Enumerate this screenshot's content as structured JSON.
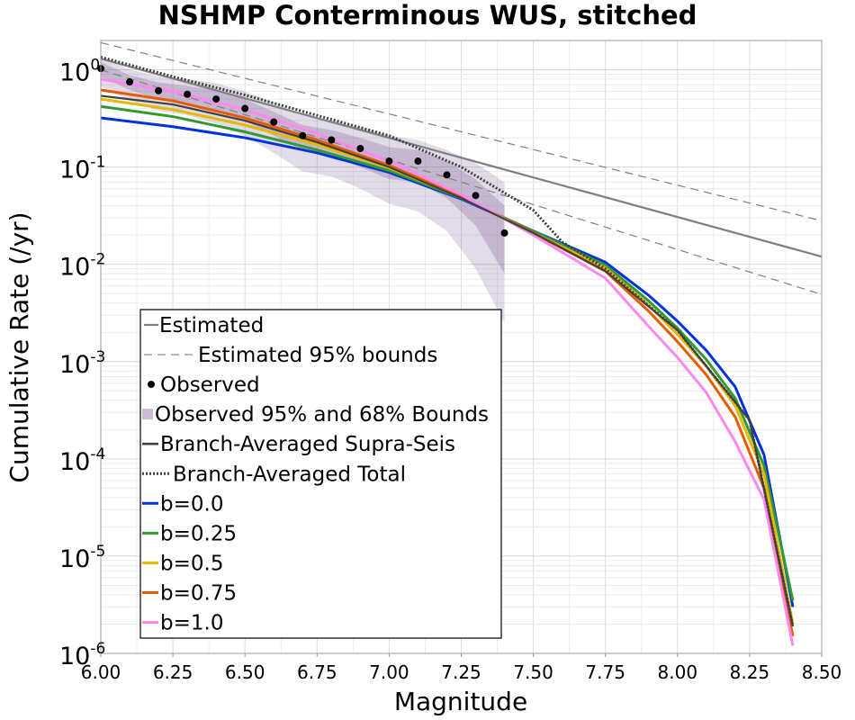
{
  "chart_data": {
    "type": "line",
    "title": "NSHMP Conterminous WUS, stitched",
    "xlabel": "Magnitude",
    "ylabel": "Cumulative Rate (/yr)",
    "xlim": [
      6.0,
      8.5
    ],
    "ylim": [
      1e-06,
      2
    ],
    "yscale": "log",
    "grid": true,
    "legend_placement": "lower-left",
    "x_ticks": [
      "6.00",
      "6.25",
      "6.50",
      "6.75",
      "7.00",
      "7.25",
      "7.50",
      "7.75",
      "8.00",
      "8.25",
      "8.50"
    ],
    "y_ticks": [
      {
        "base": "10",
        "exp": "0",
        "value": 1
      },
      {
        "base": "10",
        "exp": "-1",
        "value": 0.1
      },
      {
        "base": "10",
        "exp": "-2",
        "value": 0.01
      },
      {
        "base": "10",
        "exp": "-3",
        "value": 0.001
      },
      {
        "base": "10",
        "exp": "-4",
        "value": 0.0001
      },
      {
        "base": "10",
        "exp": "-5",
        "value": 1e-05
      },
      {
        "base": "10",
        "exp": "-6",
        "value": 1e-06
      }
    ],
    "estimated": {
      "name": "Estimated",
      "color": "#808080",
      "x": [
        6.0,
        8.5
      ],
      "y": [
        1.3,
        0.012
      ]
    },
    "estimated_bounds": {
      "name": "Estimated 95% bounds",
      "color": "#808080",
      "upper": {
        "x": [
          6.0,
          8.5
        ],
        "y": [
          1.9,
          0.028
        ]
      },
      "lower": {
        "x": [
          6.0,
          8.5
        ],
        "y": [
          1.0,
          0.0049
        ]
      }
    },
    "observed": {
      "name": "Observed",
      "color": "#000000",
      "x": [
        6.0,
        6.1,
        6.2,
        6.3,
        6.4,
        6.5,
        6.6,
        6.7,
        6.8,
        6.9,
        7.0,
        7.1,
        7.2,
        7.3,
        7.4
      ],
      "y": [
        1.03,
        0.75,
        0.61,
        0.56,
        0.5,
        0.4,
        0.29,
        0.21,
        0.19,
        0.155,
        0.115,
        0.115,
        0.083,
        0.051,
        0.021
      ]
    },
    "observed_bounds": {
      "name": "Observed 95% and 68% Bounds",
      "x": [
        6.0,
        6.1,
        6.2,
        6.3,
        6.4,
        6.5,
        6.6,
        6.7,
        6.8,
        6.9,
        7.0,
        7.1,
        7.2,
        7.3,
        7.4
      ],
      "b95_low": [
        0.68,
        0.48,
        0.38,
        0.34,
        0.28,
        0.21,
        0.14,
        0.09,
        0.08,
        0.06,
        0.042,
        0.035,
        0.022,
        0.009,
        0.0025
      ],
      "b95_high": [
        1.35,
        1.0,
        0.86,
        0.8,
        0.73,
        0.6,
        0.46,
        0.34,
        0.3,
        0.26,
        0.21,
        0.19,
        0.15,
        0.11,
        0.07
      ],
      "b68_low": [
        0.85,
        0.62,
        0.5,
        0.45,
        0.38,
        0.3,
        0.21,
        0.15,
        0.13,
        0.1,
        0.075,
        0.07,
        0.048,
        0.025,
        0.008
      ],
      "b68_high": [
        1.2,
        0.88,
        0.74,
        0.68,
        0.62,
        0.5,
        0.37,
        0.27,
        0.24,
        0.2,
        0.16,
        0.15,
        0.115,
        0.075,
        0.04
      ]
    },
    "branch_supra": {
      "name": "Branch-Averaged Supra-Seis",
      "color": "#404040",
      "x": [
        6.0,
        6.25,
        6.5,
        6.75,
        7.0,
        7.25,
        7.5,
        7.75,
        8.0,
        8.25,
        8.4
      ],
      "y": [
        0.54,
        0.44,
        0.3,
        0.18,
        0.1,
        0.048,
        0.021,
        0.0085,
        0.0021,
        0.00025,
        1.9e-06
      ]
    },
    "branch_total": {
      "name": "Branch-Averaged Total",
      "color": "#404040",
      "x": [
        6.0,
        6.25,
        6.5,
        6.75,
        7.0,
        7.25,
        7.5,
        7.6,
        7.75,
        8.0,
        8.25,
        8.4
      ],
      "y": [
        1.35,
        0.85,
        0.55,
        0.34,
        0.21,
        0.1,
        0.036,
        0.017,
        0.009,
        0.0021,
        0.00025,
        1.9e-06
      ]
    },
    "series": [
      {
        "name": "b=0.0",
        "color": "#0033dd",
        "x": [
          6.0,
          6.25,
          6.5,
          6.75,
          7.0,
          7.25,
          7.5,
          7.75,
          7.9,
          8.0,
          8.1,
          8.2,
          8.3,
          8.4
        ],
        "y": [
          0.32,
          0.26,
          0.2,
          0.14,
          0.088,
          0.047,
          0.022,
          0.0105,
          0.0048,
          0.0026,
          0.0013,
          0.00055,
          0.00011,
          3e-06
        ]
      },
      {
        "name": "b=0.25",
        "color": "#339933",
        "x": [
          6.0,
          6.25,
          6.5,
          6.75,
          7.0,
          7.25,
          7.5,
          7.75,
          7.9,
          8.0,
          8.1,
          8.2,
          8.3,
          8.4
        ],
        "y": [
          0.42,
          0.33,
          0.23,
          0.15,
          0.092,
          0.048,
          0.022,
          0.0098,
          0.0042,
          0.0022,
          0.00105,
          0.00042,
          8.5e-05,
          3.5e-06
        ]
      },
      {
        "name": "b=0.5",
        "color": "#e6b800",
        "x": [
          6.0,
          6.25,
          6.5,
          6.75,
          7.0,
          7.25,
          7.5,
          7.75,
          7.9,
          8.0,
          8.1,
          8.2,
          8.3,
          8.4
        ],
        "y": [
          0.5,
          0.39,
          0.27,
          0.17,
          0.098,
          0.049,
          0.021,
          0.0092,
          0.0038,
          0.0019,
          0.0009,
          0.00035,
          7e-05,
          2e-06
        ]
      },
      {
        "name": "b=0.75",
        "color": "#e65c00",
        "x": [
          6.0,
          6.25,
          6.5,
          6.75,
          7.0,
          7.25,
          7.5,
          7.75,
          7.9,
          8.0,
          8.1,
          8.2,
          8.3,
          8.4
        ],
        "y": [
          0.62,
          0.48,
          0.32,
          0.19,
          0.104,
          0.05,
          0.021,
          0.0085,
          0.0033,
          0.0016,
          0.00073,
          0.00027,
          5e-05,
          1.5e-06
        ]
      },
      {
        "name": "b=1.0",
        "color": "#ff88ee",
        "x": [
          6.0,
          6.25,
          6.5,
          6.75,
          7.0,
          7.25,
          7.5,
          7.75,
          7.9,
          8.0,
          8.1,
          8.2,
          8.3,
          8.4
        ],
        "y": [
          0.8,
          0.6,
          0.39,
          0.22,
          0.115,
          0.052,
          0.02,
          0.0072,
          0.0023,
          0.0011,
          0.00048,
          0.00015,
          3.8e-05,
          1.2e-06
        ]
      }
    ],
    "observed_band_color": "#7c5a94",
    "legend_entries": [
      "Estimated",
      "Estimated 95% bounds",
      "Observed",
      "Observed 95% and 68% Bounds",
      "Branch-Averaged Supra-Seis",
      "Branch-Averaged Total",
      "b=0.0",
      "b=0.25",
      "b=0.5",
      "b=0.75",
      "b=1.0"
    ]
  }
}
